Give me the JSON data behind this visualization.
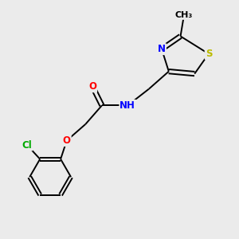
{
  "bg_color": "#ebebeb",
  "bond_color": "#000000",
  "atom_colors": {
    "O": "#ff0000",
    "N": "#0000ff",
    "S": "#bbbb00",
    "Cl": "#00aa00",
    "C": "#000000"
  },
  "lw": 1.4,
  "fs": 8.5
}
